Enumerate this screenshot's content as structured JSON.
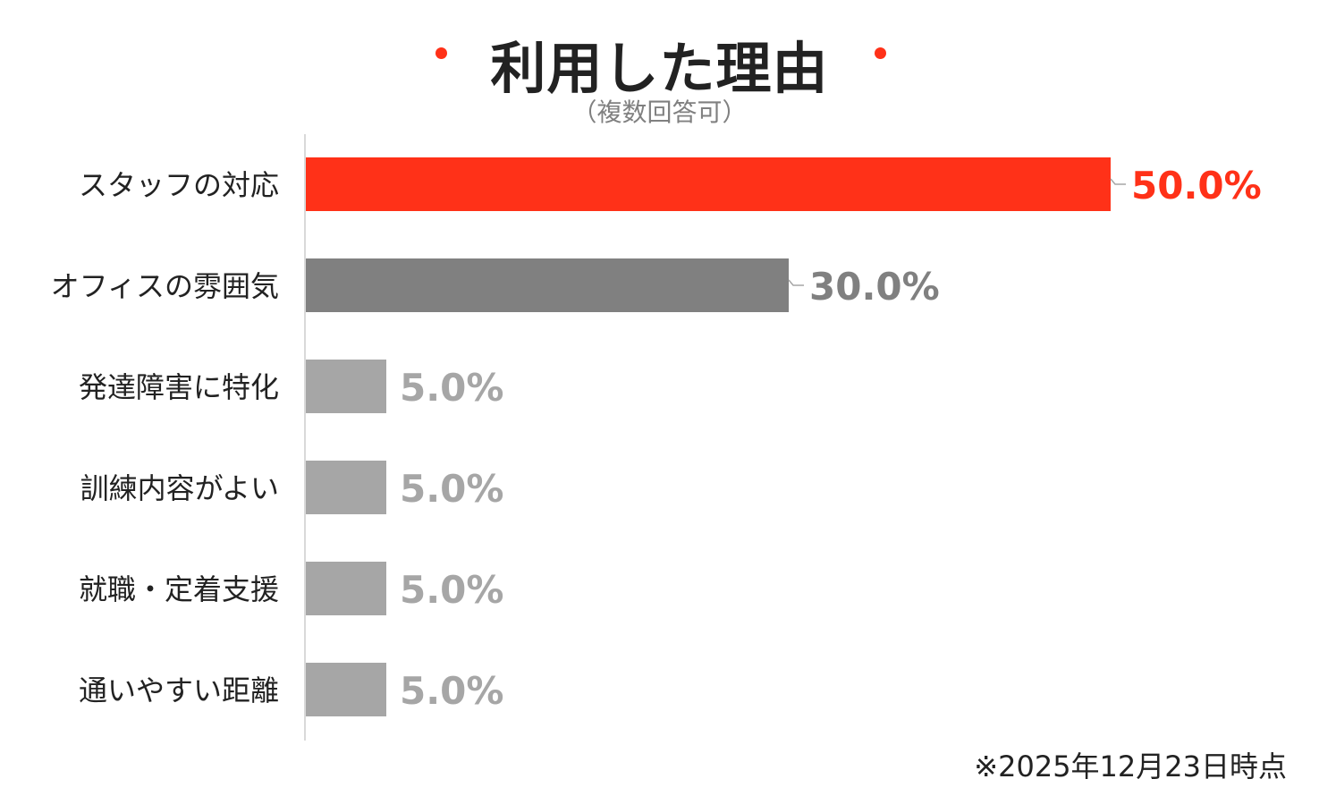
{
  "chart_data": {
    "type": "bar",
    "orientation": "horizontal",
    "title": "利用した理由",
    "subtitle": "（複数回答可）",
    "categories": [
      "スタッフの対応",
      "オフィスの雰囲気",
      "発達障害に特化",
      "訓練内容がよい",
      "就職・定着支援",
      "通いやすい距離"
    ],
    "values": [
      50.0,
      30.0,
      5.0,
      5.0,
      5.0,
      5.0
    ],
    "value_labels": [
      "50.0%",
      "30.0%",
      "5.0%",
      "5.0%",
      "5.0%",
      "5.0%"
    ],
    "xlim": [
      0,
      50
    ],
    "grid": false,
    "bar_colors": [
      "#FF3118",
      "#808080",
      "#A6A6A6",
      "#A6A6A6",
      "#A6A6A6",
      "#A6A6A6"
    ],
    "label_colors": [
      "#FF3118",
      "#808080",
      "#A6A6A6",
      "#A6A6A6",
      "#A6A6A6",
      "#A6A6A6"
    ],
    "footnote": "※2025年12月23日時点"
  },
  "colors": {
    "accent": "#FF3118",
    "axis": "#D9D9D9"
  }
}
